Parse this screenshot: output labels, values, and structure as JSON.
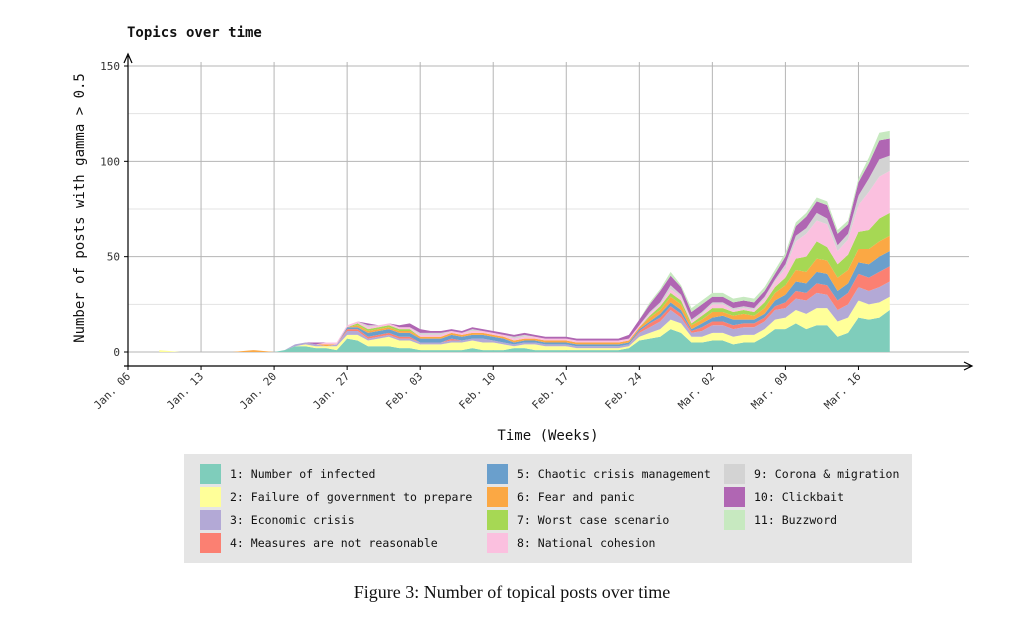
{
  "chart_data": {
    "type": "area",
    "stacked": true,
    "title": "Topics over time",
    "xlabel": "Time (Weeks)",
    "ylabel": "Number of posts with gamma > 0.5",
    "ylim": [
      0,
      150
    ],
    "yticks": [
      0,
      50,
      100,
      150
    ],
    "x_start_label": "Jan. 06",
    "x_day_range": [
      0,
      76
    ],
    "xticks": [
      {
        "day": 0,
        "label": "Jan. 06"
      },
      {
        "day": 7,
        "label": "Jan. 13"
      },
      {
        "day": 14,
        "label": "Jan. 20"
      },
      {
        "day": 21,
        "label": "Jan. 27"
      },
      {
        "day": 28,
        "label": "Feb. 03"
      },
      {
        "day": 35,
        "label": "Feb. 10"
      },
      {
        "day": 42,
        "label": "Feb. 17"
      },
      {
        "day": 49,
        "label": "Feb. 24"
      },
      {
        "day": 56,
        "label": "Mar. 02"
      },
      {
        "day": 63,
        "label": "Mar. 09"
      },
      {
        "day": 70,
        "label": "Mar. 16"
      }
    ],
    "x": [
      3,
      5,
      10,
      12,
      14,
      15,
      16,
      17,
      18,
      19,
      20,
      21,
      22,
      23,
      24,
      25,
      26,
      27,
      28,
      29,
      30,
      31,
      32,
      33,
      34,
      35,
      36,
      37,
      38,
      39,
      40,
      41,
      42,
      43,
      44,
      45,
      46,
      47,
      48,
      49,
      50,
      51,
      52,
      53,
      54,
      55,
      56,
      57,
      58,
      59,
      60,
      61,
      62,
      63,
      64,
      65,
      66,
      67,
      68,
      69,
      70,
      71,
      72,
      73
    ],
    "series": [
      {
        "name": "1: Number of infected",
        "color": "#7fcdbb",
        "values": [
          0,
          0,
          0,
          0,
          0,
          1,
          3,
          3,
          2,
          2,
          1,
          7,
          6,
          3,
          3,
          3,
          2,
          2,
          1,
          1,
          1,
          1,
          1,
          2,
          1,
          1,
          1,
          2,
          2,
          1,
          1,
          1,
          1,
          1,
          1,
          1,
          1,
          1,
          2,
          6,
          7,
          8,
          12,
          10,
          5,
          5,
          6,
          6,
          4,
          5,
          5,
          8,
          12,
          12,
          15,
          12,
          14,
          14,
          8,
          10,
          18,
          17,
          18,
          22
        ]
      },
      {
        "name": "2: Failure of government to prepare",
        "color": "#ffff99",
        "values": [
          1,
          0,
          0,
          0,
          0,
          0,
          0,
          1,
          1,
          1,
          2,
          2,
          3,
          3,
          4,
          5,
          4,
          4,
          3,
          3,
          3,
          4,
          4,
          4,
          4,
          4,
          3,
          1,
          2,
          3,
          2,
          2,
          2,
          1,
          1,
          1,
          1,
          1,
          1,
          2,
          3,
          4,
          5,
          5,
          3,
          3,
          4,
          4,
          4,
          4,
          4,
          4,
          5,
          6,
          7,
          8,
          9,
          9,
          8,
          8,
          9,
          8,
          8,
          7
        ]
      },
      {
        "name": "3: Economic crisis",
        "color": "#b3a9d6",
        "values": [
          0,
          0,
          0,
          0,
          0,
          0,
          1,
          1,
          1,
          0,
          1,
          2,
          2,
          1,
          1,
          1,
          1,
          1,
          1,
          1,
          1,
          1,
          1,
          1,
          2,
          1,
          1,
          1,
          1,
          1,
          1,
          1,
          1,
          1,
          1,
          1,
          1,
          1,
          1,
          2,
          3,
          4,
          5,
          3,
          2,
          3,
          4,
          4,
          4,
          4,
          4,
          4,
          5,
          5,
          6,
          7,
          8,
          7,
          6,
          7,
          7,
          7,
          8,
          8
        ]
      },
      {
        "name": "4: Measures are not reasonable",
        "color": "#fb8072",
        "values": [
          0,
          0,
          0,
          0,
          0,
          0,
          0,
          0,
          0,
          0,
          0,
          1,
          1,
          1,
          1,
          1,
          1,
          1,
          0,
          0,
          0,
          1,
          0,
          0,
          0,
          0,
          0,
          0,
          0,
          0,
          0,
          0,
          0,
          0,
          0,
          0,
          0,
          0,
          0,
          1,
          2,
          2,
          2,
          2,
          1,
          2,
          2,
          2,
          2,
          2,
          2,
          2,
          2,
          3,
          4,
          4,
          5,
          5,
          5,
          6,
          7,
          7,
          8,
          8
        ]
      },
      {
        "name": "5: Chaotic crisis management",
        "color": "#6a9fcc",
        "values": [
          0,
          0,
          0,
          0,
          0,
          0,
          0,
          0,
          0,
          0,
          0,
          1,
          1,
          2,
          2,
          2,
          2,
          2,
          2,
          2,
          2,
          2,
          2,
          2,
          2,
          2,
          2,
          1,
          1,
          1,
          1,
          1,
          1,
          1,
          1,
          1,
          1,
          1,
          1,
          1,
          1,
          2,
          2,
          2,
          1,
          2,
          2,
          3,
          3,
          2,
          2,
          2,
          3,
          4,
          5,
          5,
          6,
          6,
          5,
          5,
          6,
          7,
          8,
          8
        ]
      },
      {
        "name": "6: Fear and panic",
        "color": "#fba844",
        "values": [
          0,
          0,
          0,
          1,
          0,
          0,
          0,
          0,
          0,
          1,
          0,
          0,
          1,
          1,
          1,
          1,
          1,
          1,
          1,
          1,
          1,
          1,
          1,
          1,
          1,
          1,
          1,
          1,
          1,
          1,
          1,
          1,
          1,
          1,
          1,
          1,
          1,
          1,
          1,
          1,
          2,
          2,
          3,
          3,
          2,
          2,
          3,
          2,
          2,
          3,
          2,
          3,
          4,
          5,
          6,
          6,
          7,
          7,
          7,
          7,
          7,
          8,
          8,
          8
        ]
      },
      {
        "name": "7: Worst case scenario",
        "color": "#a6d854",
        "values": [
          0,
          0,
          0,
          0,
          0,
          0,
          0,
          0,
          0,
          0,
          0,
          0,
          1,
          1,
          1,
          1,
          1,
          1,
          0,
          0,
          0,
          0,
          0,
          0,
          0,
          0,
          0,
          0,
          0,
          0,
          0,
          0,
          0,
          0,
          0,
          0,
          0,
          0,
          0,
          0,
          1,
          2,
          2,
          2,
          1,
          2,
          2,
          2,
          2,
          2,
          2,
          3,
          3,
          4,
          6,
          8,
          9,
          7,
          7,
          8,
          9,
          10,
          12,
          12
        ]
      },
      {
        "name": "8: National cohesion",
        "color": "#fbc0df",
        "values": [
          0,
          0,
          0,
          0,
          0,
          0,
          0,
          0,
          0,
          1,
          1,
          1,
          1,
          1,
          1,
          1,
          1,
          1,
          1,
          1,
          1,
          1,
          1,
          1,
          1,
          1,
          1,
          1,
          1,
          1,
          1,
          1,
          1,
          1,
          1,
          1,
          1,
          1,
          1,
          1,
          1,
          1,
          2,
          2,
          1,
          1,
          2,
          2,
          1,
          1,
          1,
          2,
          3,
          5,
          9,
          12,
          11,
          12,
          7,
          8,
          14,
          20,
          22,
          22
        ]
      },
      {
        "name": "9: Corona & migration",
        "color": "#d3d3d3",
        "values": [
          0,
          0,
          0,
          0,
          0,
          0,
          0,
          0,
          0,
          0,
          0,
          0,
          0,
          1,
          0,
          0,
          0,
          0,
          1,
          1,
          1,
          0,
          0,
          1,
          0,
          0,
          0,
          1,
          1,
          0,
          0,
          0,
          0,
          0,
          0,
          0,
          0,
          0,
          0,
          0,
          1,
          1,
          2,
          1,
          1,
          1,
          1,
          1,
          1,
          1,
          1,
          1,
          1,
          2,
          3,
          3,
          4,
          3,
          3,
          3,
          5,
          7,
          9,
          8
        ]
      },
      {
        "name": "10: Clickbait",
        "color": "#b066b3",
        "values": [
          0,
          0,
          0,
          0,
          0,
          0,
          0,
          0,
          1,
          0,
          0,
          0,
          0,
          1,
          0,
          0,
          1,
          2,
          2,
          1,
          1,
          1,
          1,
          1,
          1,
          1,
          1,
          1,
          1,
          1,
          1,
          1,
          1,
          1,
          1,
          1,
          1,
          1,
          2,
          3,
          4,
          6,
          5,
          4,
          4,
          4,
          3,
          3,
          3,
          3,
          3,
          3,
          3,
          4,
          5,
          6,
          6,
          7,
          6,
          5,
          7,
          8,
          10,
          9
        ]
      },
      {
        "name": "11: Buzzword",
        "color": "#c7e9c0",
        "values": [
          0,
          0,
          0,
          0,
          0,
          0,
          0,
          0,
          0,
          0,
          0,
          0,
          0,
          0,
          0,
          0,
          0,
          0,
          0,
          0,
          0,
          0,
          0,
          0,
          0,
          0,
          0,
          0,
          0,
          0,
          0,
          0,
          0,
          0,
          0,
          0,
          0,
          0,
          0,
          0,
          1,
          1,
          2,
          1,
          2,
          2,
          2,
          2,
          2,
          2,
          2,
          2,
          2,
          2,
          2,
          2,
          2,
          2,
          2,
          2,
          2,
          3,
          4,
          4
        ]
      }
    ]
  },
  "caption": "Figure 3: Number of topical posts over time"
}
